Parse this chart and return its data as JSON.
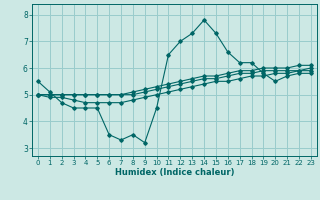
{
  "title": "",
  "xlabel": "Humidex (Indice chaleur)",
  "ylabel": "",
  "bg_color": "#cce8e4",
  "line_color": "#006666",
  "grid_color": "#99cccc",
  "x_ticks": [
    0,
    1,
    2,
    3,
    4,
    5,
    6,
    7,
    8,
    9,
    10,
    11,
    12,
    13,
    14,
    15,
    16,
    17,
    18,
    19,
    20,
    21,
    22,
    23
  ],
  "y_ticks": [
    3,
    4,
    5,
    6,
    7,
    8
  ],
  "xlim": [
    -0.5,
    23.5
  ],
  "ylim": [
    2.7,
    8.4
  ],
  "curves": [
    {
      "x": [
        0,
        1,
        2,
        3,
        4,
        5,
        6,
        7,
        8,
        9,
        10,
        11,
        12,
        13,
        14,
        15,
        16,
        17,
        18,
        19,
        20,
        21,
        22,
        23
      ],
      "y": [
        5.5,
        5.1,
        4.7,
        4.5,
        4.5,
        4.5,
        3.5,
        3.3,
        3.5,
        3.2,
        4.5,
        6.5,
        7.0,
        7.3,
        7.8,
        7.3,
        6.6,
        6.2,
        6.2,
        5.8,
        5.5,
        5.7,
        5.8,
        5.8
      ]
    },
    {
      "x": [
        0,
        1,
        2,
        3,
        4,
        5,
        6,
        7,
        8,
        9,
        10,
        11,
        12,
        13,
        14,
        15,
        16,
        17,
        18,
        19,
        20,
        21,
        22,
        23
      ],
      "y": [
        5.0,
        5.0,
        5.0,
        5.0,
        5.0,
        5.0,
        5.0,
        5.0,
        5.1,
        5.2,
        5.3,
        5.4,
        5.5,
        5.6,
        5.7,
        5.7,
        5.8,
        5.9,
        5.9,
        6.0,
        6.0,
        6.0,
        6.1,
        6.1
      ]
    },
    {
      "x": [
        0,
        1,
        2,
        3,
        4,
        5,
        6,
        7,
        8,
        9,
        10,
        11,
        12,
        13,
        14,
        15,
        16,
        17,
        18,
        19,
        20,
        21,
        22,
        23
      ],
      "y": [
        5.0,
        5.0,
        5.0,
        5.0,
        5.0,
        5.0,
        5.0,
        5.0,
        5.0,
        5.1,
        5.2,
        5.3,
        5.4,
        5.5,
        5.6,
        5.6,
        5.7,
        5.8,
        5.8,
        5.9,
        5.9,
        5.9,
        5.9,
        6.0
      ]
    },
    {
      "x": [
        0,
        1,
        2,
        3,
        4,
        5,
        6,
        7,
        8,
        9,
        10,
        11,
        12,
        13,
        14,
        15,
        16,
        17,
        18,
        19,
        20,
        21,
        22,
        23
      ],
      "y": [
        5.0,
        4.9,
        4.9,
        4.8,
        4.7,
        4.7,
        4.7,
        4.7,
        4.8,
        4.9,
        5.0,
        5.1,
        5.2,
        5.3,
        5.4,
        5.5,
        5.5,
        5.6,
        5.7,
        5.7,
        5.8,
        5.8,
        5.9,
        5.9
      ]
    }
  ],
  "marker": "D",
  "markersize": 1.8,
  "linewidth": 0.8,
  "xlabel_fontsize": 6.0,
  "tick_fontsize": 5.0
}
